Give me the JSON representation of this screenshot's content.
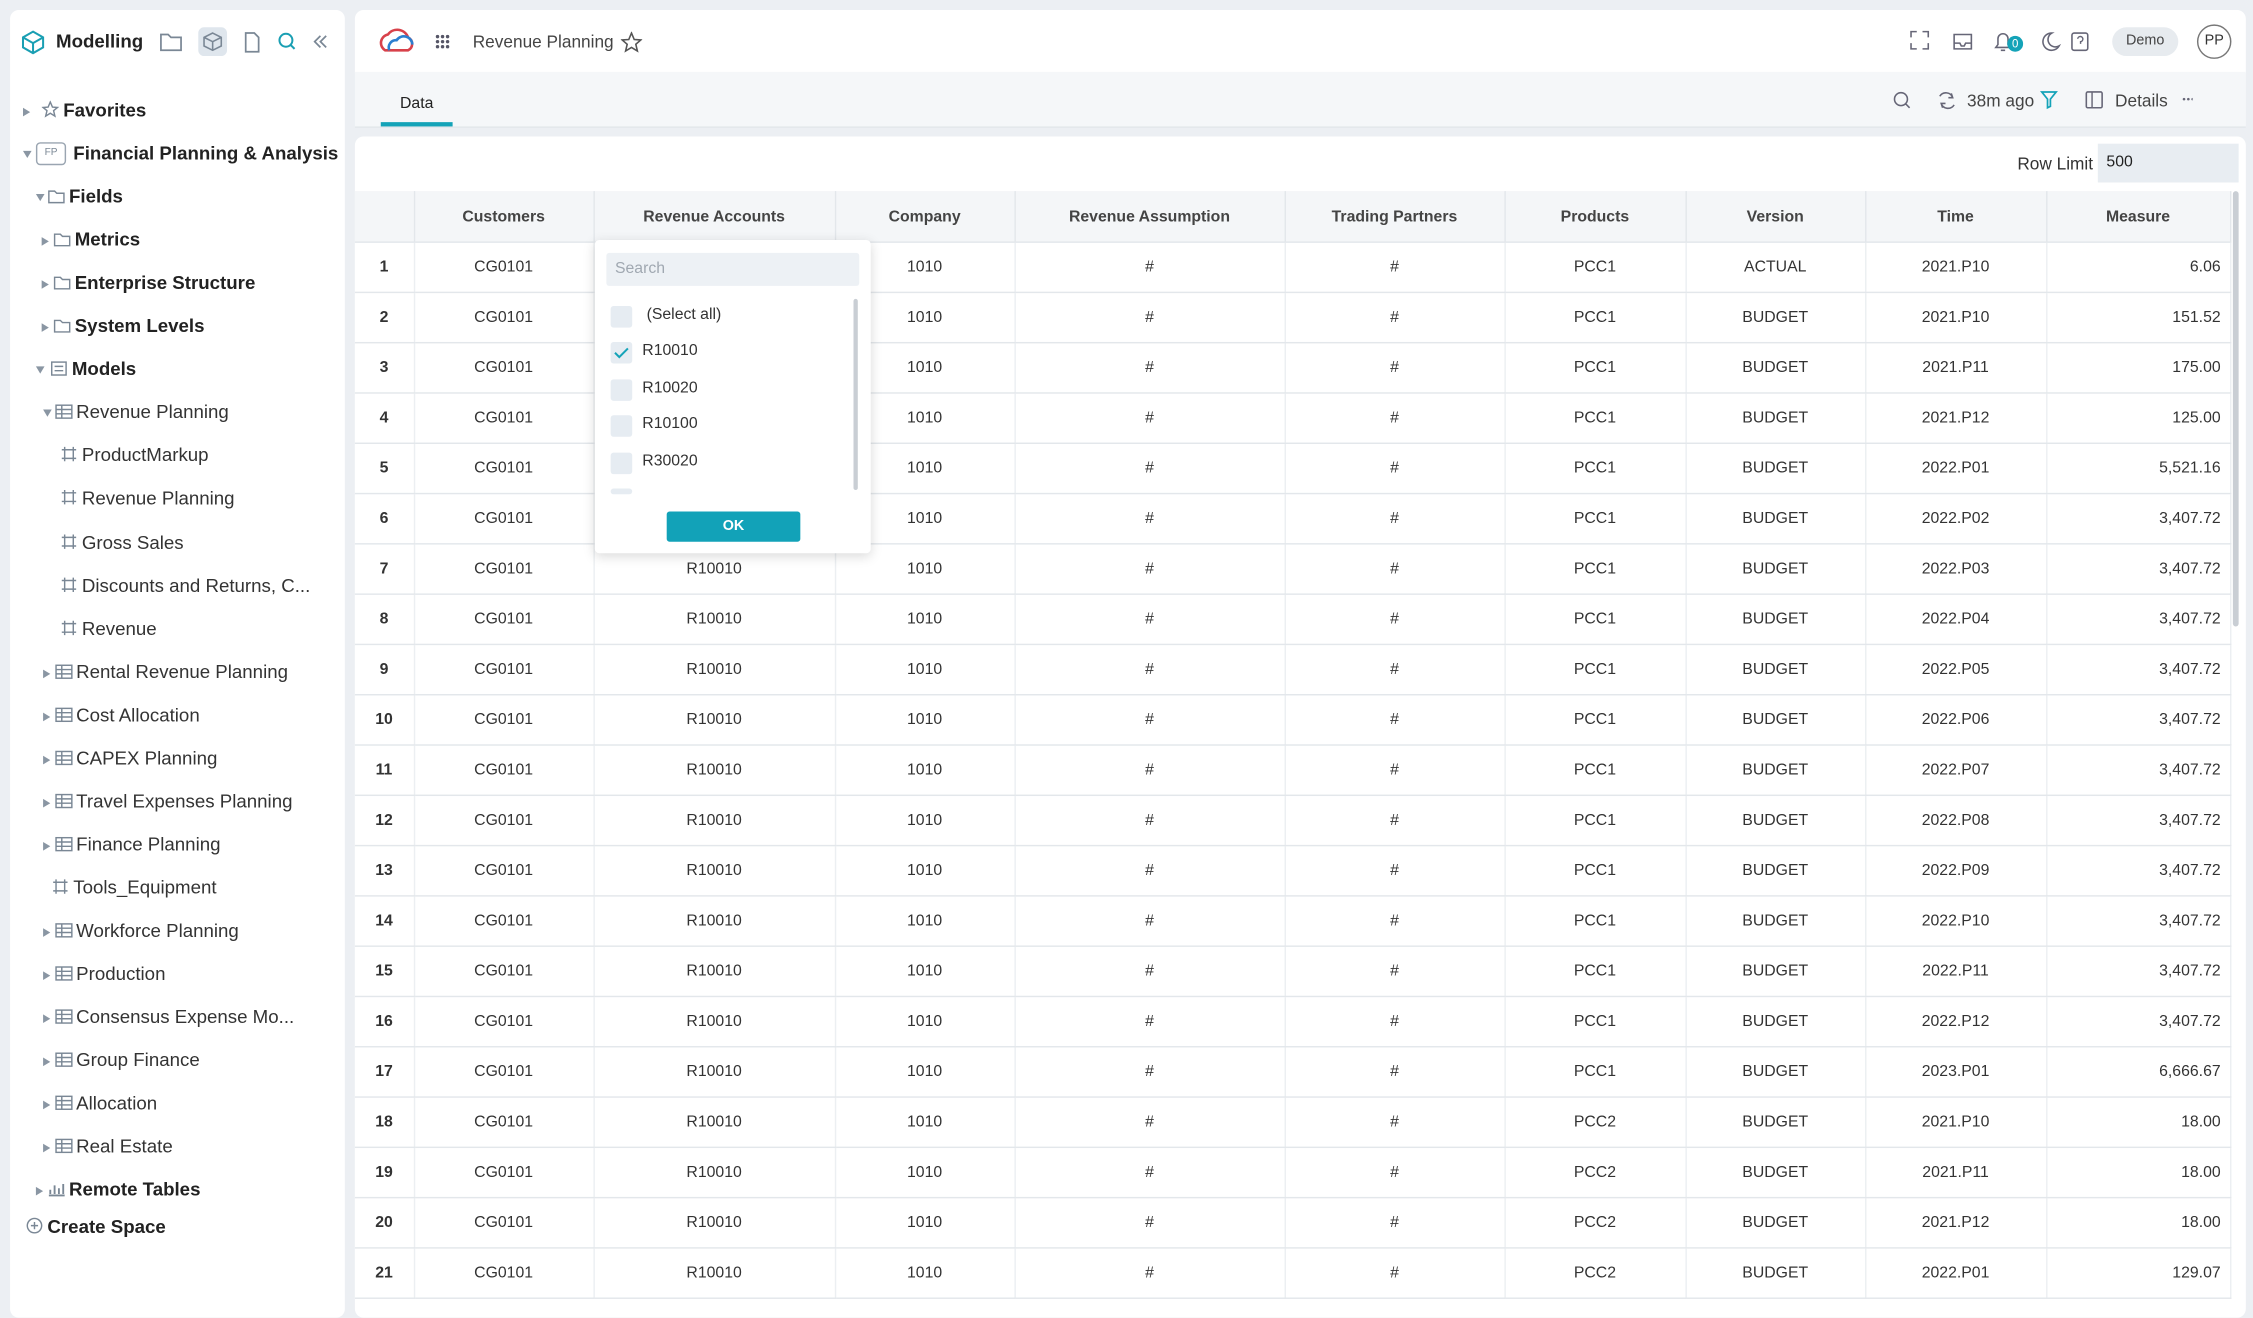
{
  "sidebar": {
    "title": "Modelling",
    "items": [
      {
        "label": "Favorites"
      },
      {
        "label": "Financial Planning & Analysis",
        "badge": "FP"
      },
      {
        "label": "Fields"
      },
      {
        "label": "Metrics"
      },
      {
        "label": "Enterprise Structure"
      },
      {
        "label": "System Levels"
      },
      {
        "label": "Models"
      },
      {
        "label": "Revenue Planning"
      },
      {
        "label": "ProductMarkup"
      },
      {
        "label": "Revenue Planning"
      },
      {
        "label": "Gross Sales"
      },
      {
        "label": "Discounts and Returns, C..."
      },
      {
        "label": "Revenue"
      },
      {
        "label": "Rental Revenue Planning"
      },
      {
        "label": "Cost Allocation"
      },
      {
        "label": "CAPEX Planning"
      },
      {
        "label": "Travel Expenses Planning"
      },
      {
        "label": "Finance Planning"
      },
      {
        "label": "Tools_Equipment"
      },
      {
        "label": "Workforce Planning"
      },
      {
        "label": "Production"
      },
      {
        "label": "Consensus Expense Mo..."
      },
      {
        "label": "Group Finance"
      },
      {
        "label": "Allocation"
      },
      {
        "label": "Real Estate"
      },
      {
        "label": "Remote Tables"
      },
      {
        "label": "Create Space"
      }
    ]
  },
  "header": {
    "title": "Revenue Planning",
    "notification_count": "0",
    "environment": "Demo",
    "user_initials": "PP"
  },
  "tabs": [
    "Data"
  ],
  "toolbar": {
    "refreshed": "38m ago",
    "details": "Details"
  },
  "row_limit": {
    "label": "Row Limit",
    "value": "500"
  },
  "table": {
    "columns": [
      "Customers",
      "Revenue Accounts",
      "Company",
      "Revenue Assumption",
      "Trading Partners",
      "Products",
      "Version",
      "Time",
      "Measure"
    ],
    "rows": [
      [
        "1",
        "CG0101",
        null,
        "1010",
        "#",
        "#",
        "PCC1",
        "ACTUAL",
        "2021.P10",
        "6.06"
      ],
      [
        "2",
        "CG0101",
        null,
        "1010",
        "#",
        "#",
        "PCC1",
        "BUDGET",
        "2021.P10",
        "151.52"
      ],
      [
        "3",
        "CG0101",
        null,
        "1010",
        "#",
        "#",
        "PCC1",
        "BUDGET",
        "2021.P11",
        "175.00"
      ],
      [
        "4",
        "CG0101",
        null,
        "1010",
        "#",
        "#",
        "PCC1",
        "BUDGET",
        "2021.P12",
        "125.00"
      ],
      [
        "5",
        "CG0101",
        null,
        "1010",
        "#",
        "#",
        "PCC1",
        "BUDGET",
        "2022.P01",
        "5,521.16"
      ],
      [
        "6",
        "CG0101",
        null,
        "1010",
        "#",
        "#",
        "PCC1",
        "BUDGET",
        "2022.P02",
        "3,407.72"
      ],
      [
        "7",
        "CG0101",
        "R10010",
        "1010",
        "#",
        "#",
        "PCC1",
        "BUDGET",
        "2022.P03",
        "3,407.72"
      ],
      [
        "8",
        "CG0101",
        "R10010",
        "1010",
        "#",
        "#",
        "PCC1",
        "BUDGET",
        "2022.P04",
        "3,407.72"
      ],
      [
        "9",
        "CG0101",
        "R10010",
        "1010",
        "#",
        "#",
        "PCC1",
        "BUDGET",
        "2022.P05",
        "3,407.72"
      ],
      [
        "10",
        "CG0101",
        "R10010",
        "1010",
        "#",
        "#",
        "PCC1",
        "BUDGET",
        "2022.P06",
        "3,407.72"
      ],
      [
        "11",
        "CG0101",
        "R10010",
        "1010",
        "#",
        "#",
        "PCC1",
        "BUDGET",
        "2022.P07",
        "3,407.72"
      ],
      [
        "12",
        "CG0101",
        "R10010",
        "1010",
        "#",
        "#",
        "PCC1",
        "BUDGET",
        "2022.P08",
        "3,407.72"
      ],
      [
        "13",
        "CG0101",
        "R10010",
        "1010",
        "#",
        "#",
        "PCC1",
        "BUDGET",
        "2022.P09",
        "3,407.72"
      ],
      [
        "14",
        "CG0101",
        "R10010",
        "1010",
        "#",
        "#",
        "PCC1",
        "BUDGET",
        "2022.P10",
        "3,407.72"
      ],
      [
        "15",
        "CG0101",
        "R10010",
        "1010",
        "#",
        "#",
        "PCC1",
        "BUDGET",
        "2022.P11",
        "3,407.72"
      ],
      [
        "16",
        "CG0101",
        "R10010",
        "1010",
        "#",
        "#",
        "PCC1",
        "BUDGET",
        "2022.P12",
        "3,407.72"
      ],
      [
        "17",
        "CG0101",
        "R10010",
        "1010",
        "#",
        "#",
        "PCC1",
        "BUDGET",
        "2023.P01",
        "6,666.67"
      ],
      [
        "18",
        "CG0101",
        "R10010",
        "1010",
        "#",
        "#",
        "PCC2",
        "BUDGET",
        "2021.P10",
        "18.00"
      ],
      [
        "19",
        "CG0101",
        "R10010",
        "1010",
        "#",
        "#",
        "PCC2",
        "BUDGET",
        "2021.P11",
        "18.00"
      ],
      [
        "20",
        "CG0101",
        "R10010",
        "1010",
        "#",
        "#",
        "PCC2",
        "BUDGET",
        "2021.P12",
        "18.00"
      ],
      [
        "21",
        "CG0101",
        "R10010",
        "1010",
        "#",
        "#",
        "PCC2",
        "BUDGET",
        "2022.P01",
        "129.07"
      ]
    ]
  },
  "filter_popup": {
    "search_placeholder": "Search",
    "options": [
      {
        "label": "(Select all)",
        "checked": false
      },
      {
        "label": "R10010",
        "checked": true
      },
      {
        "label": "R10020",
        "checked": false
      },
      {
        "label": "R10100",
        "checked": false
      },
      {
        "label": "R30020",
        "checked": false
      }
    ],
    "ok_button": "OK"
  }
}
